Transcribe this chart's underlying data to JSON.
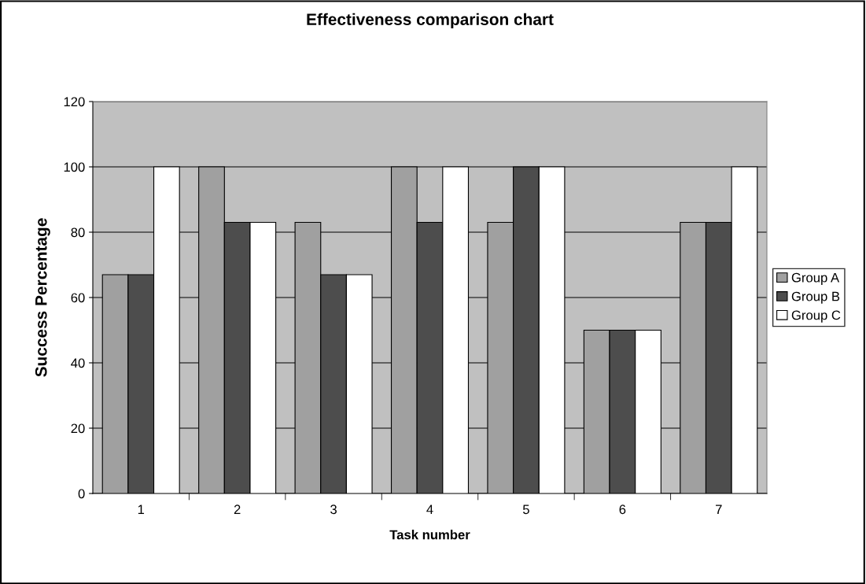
{
  "chart_data": {
    "type": "bar",
    "title": "Effectiveness comparison chart",
    "xlabel": "Task number",
    "ylabel": "Success Percentage",
    "categories": [
      "1",
      "2",
      "3",
      "4",
      "5",
      "6",
      "7"
    ],
    "series": [
      {
        "name": "Group A",
        "color": "#a0a0a0",
        "values": [
          67,
          100,
          83,
          100,
          83,
          50,
          83
        ]
      },
      {
        "name": "Group B",
        "color": "#4d4d4d",
        "values": [
          67,
          83,
          67,
          83,
          100,
          50,
          83
        ]
      },
      {
        "name": "Group C",
        "color": "#ffffff",
        "values": [
          100,
          83,
          67,
          100,
          100,
          50,
          100
        ]
      }
    ],
    "ylim": [
      0,
      120
    ],
    "yticks": [
      0,
      20,
      40,
      60,
      80,
      100,
      120
    ],
    "grid": "y",
    "legend": "right"
  }
}
